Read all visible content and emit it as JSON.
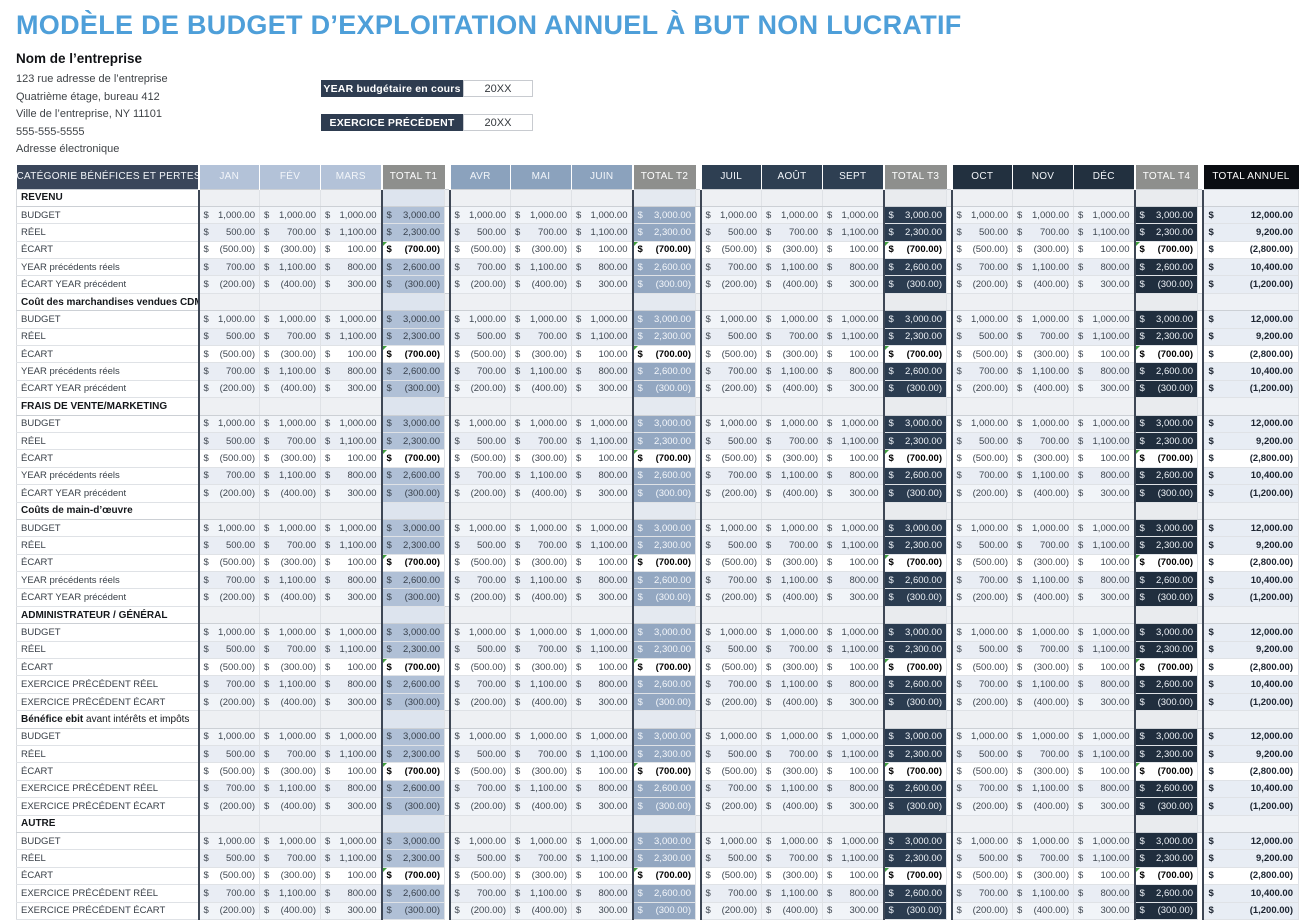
{
  "title": "MODÈLE DE BUDGET D’EXPLOITATION ANNUEL À BUT NON LUCRATIF",
  "company": {
    "name": "Nom de l’entreprise",
    "address": [
      "123 rue adresse de l’entreprise",
      "Quatrième étage, bureau 412",
      "Ville de l’entreprise, NY 11101",
      "555-555-5555",
      "Adresse électronique"
    ]
  },
  "fields": [
    {
      "label": "YEAR budgétaire en cours",
      "value": "20XX"
    },
    {
      "label": "EXERCICE PRÉCÉDENT",
      "value": "20XX"
    }
  ],
  "table": {
    "category_header": "CATÉGORIE BÉNÉFICES ET PERTES",
    "annual_header": "TOTAL ANNUEL",
    "currency": "$",
    "quarters": [
      {
        "months": [
          "JAN",
          "FÉV",
          "MARS"
        ],
        "total": "TOTAL T1"
      },
      {
        "months": [
          "AVR",
          "MAI",
          "JUIN"
        ],
        "total": "TOTAL T2"
      },
      {
        "months": [
          "JUIL",
          "AOÛT",
          "SEPT"
        ],
        "total": "TOTAL T3"
      },
      {
        "months": [
          "OCT",
          "NOV",
          "DÉC"
        ],
        "total": "TOTAL T4"
      }
    ],
    "row_values": [
      {
        "months": [
          "1,000.00",
          "1,000.00",
          "1,000.00"
        ],
        "quarter_total": "3,000.00",
        "annual_total": "12,000.00",
        "is_ecart": false
      },
      {
        "months": [
          "500.00",
          "700.00",
          "1,100.00"
        ],
        "quarter_total": "2,300.00",
        "annual_total": "9,200.00",
        "is_ecart": false
      },
      {
        "months": [
          "(500.00)",
          "(300.00)",
          "100.00"
        ],
        "quarter_total": "(700.00)",
        "annual_total": "(2,800.00)",
        "is_ecart": true
      },
      {
        "months": [
          "700.00",
          "1,100.00",
          "800.00"
        ],
        "quarter_total": "2,600.00",
        "annual_total": "10,400.00",
        "is_ecart": false
      },
      {
        "months": [
          "(200.00)",
          "(400.00)",
          "300.00"
        ],
        "quarter_total": "(300.00)",
        "annual_total": "(1,200.00)",
        "is_ecart": false
      }
    ],
    "sections": [
      {
        "name_bold": "REVENU",
        "name_rest": "",
        "rows": [
          "BUDGET",
          "RÉEL",
          "ÉCART",
          "YEAR précédents réels",
          "ÉCART YEAR précédent"
        ]
      },
      {
        "name_bold": "Coût des marchandises vendues CDMV",
        "name_rest": "",
        "rows": [
          "BUDGET",
          "RÉEL",
          "ÉCART",
          "YEAR précédents réels",
          "ÉCART YEAR précédent"
        ]
      },
      {
        "name_bold": "FRAIS DE VENTE/MARKETING",
        "name_rest": "",
        "rows": [
          "BUDGET",
          "RÉEL",
          "ÉCART",
          "YEAR précédents réels",
          "ÉCART YEAR précédent"
        ]
      },
      {
        "name_bold": "Coûts de main-d’œuvre",
        "name_rest": "",
        "rows": [
          "BUDGET",
          "RÉEL",
          "ÉCART",
          "YEAR précédents réels",
          "ÉCART YEAR précédent"
        ]
      },
      {
        "name_bold": "ADMINISTRATEUR / GÉNÉRAL",
        "name_rest": "",
        "rows": [
          "BUDGET",
          "RÉEL",
          "ÉCART",
          "EXERCICE PRÉCÉDENT RÉEL",
          "EXERCICE PRÉCÉDENT ÉCART"
        ]
      },
      {
        "name_bold": "Bénéfice ebit",
        "name_rest": " avant intérêts et impôts",
        "rows": [
          "BUDGET",
          "RÉEL",
          "ÉCART",
          "EXERCICE PRÉCÉDENT RÉEL",
          "EXERCICE PRÉCÉDENT ÉCART"
        ]
      },
      {
        "name_bold": "AUTRE",
        "name_rest": "",
        "rows": [
          "BUDGET",
          "RÉEL",
          "ÉCART",
          "EXERCICE PRÉCÉDENT RÉEL",
          "EXERCICE PRÉCÉDENT ÉCART"
        ]
      }
    ]
  },
  "colors": {
    "title_blue": "#4e9fd9",
    "category_header_bg": "#3a465a",
    "field_label_bg": "#2e3c50",
    "q1_month_header": "#b3c2d8",
    "q2_month_header": "#8ba2bd",
    "q3_month_header": "#2e3f52",
    "q4_month_header": "#22303f",
    "quarter_total_header": "#8e8f8d",
    "annual_header": "#0a0d12",
    "q1_total_cell": "#b0c0d6",
    "q2_total_cell": "#93a7c1",
    "q3_total_cell": "#2b3c50",
    "q4_total_cell": "#202e3e",
    "annual_cell": "#e8edf4",
    "ecart_corner_marker": "#3f9e3d"
  }
}
